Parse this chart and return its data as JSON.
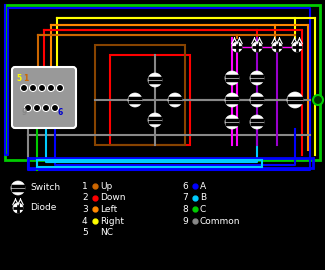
{
  "bg": "#000000",
  "green": "#00cc00",
  "yellow": "#ffff00",
  "orange": "#cc6600",
  "red": "#ff0000",
  "orange2": "#ff8800",
  "brown": "#884400",
  "blue": "#0000ff",
  "cyan": "#00ccff",
  "gray": "#888888",
  "magenta": "#ff00ff",
  "purple": "#9900cc",
  "white": "#ffffff",
  "darkblue": "#0000cc",
  "pin_labels": [
    {
      "num": "1",
      "color": "#cc6600",
      "name": "Up"
    },
    {
      "num": "2",
      "color": "#ff0000",
      "name": "Down"
    },
    {
      "num": "3",
      "color": "#ff8800",
      "name": "Left"
    },
    {
      "num": "4",
      "color": "#ffff00",
      "name": "Right"
    },
    {
      "num": "5",
      "color": "#ffffff",
      "name": "NC",
      "no_dot": true
    },
    {
      "num": "6",
      "color": "#0000ff",
      "name": "A"
    },
    {
      "num": "7",
      "color": "#00ccff",
      "name": "B"
    },
    {
      "num": "8",
      "color": "#00cc00",
      "name": "C"
    },
    {
      "num": "9",
      "color": "#888888",
      "name": "Common"
    }
  ]
}
